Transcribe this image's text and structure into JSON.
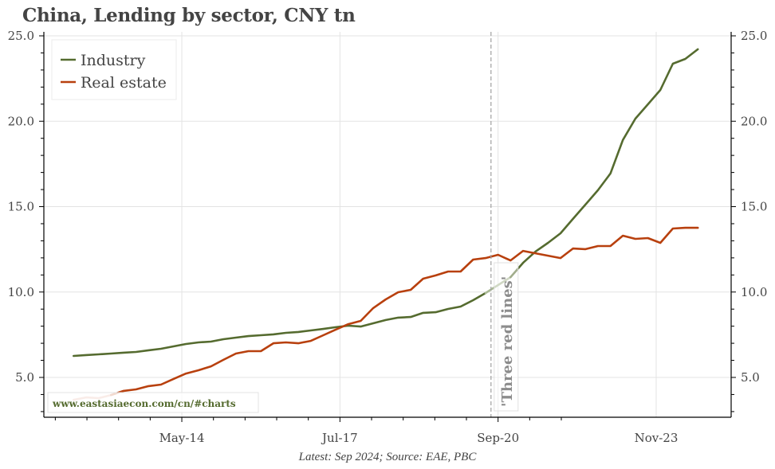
{
  "chart_data": {
    "type": "line",
    "title": "China, Lending by sector, CNY tn",
    "footer": "Latest: Sep 2024; Source: EAE, PBC",
    "watermark": "www.eastasiaecon.com/cn/#charts",
    "annotation": {
      "text": "'Three red lines'",
      "x_month_index": 102.3,
      "style": "dashed vertical line"
    },
    "xlabel": "",
    "ylabel": "",
    "ylim": [
      2.7,
      25.3
    ],
    "y_ticks": [
      5.0,
      10.0,
      15.0,
      20.0,
      25.0
    ],
    "y_tick_labels": [
      "5.0",
      "10.0",
      "15.0",
      "20.0",
      "25.0"
    ],
    "y_axis_both_sides": true,
    "x_ticks": [
      {
        "label": "May-14",
        "month_index": 28
      },
      {
        "label": "Jul-17",
        "month_index": 66
      },
      {
        "label": "Sep-20",
        "month_index": 104
      },
      {
        "label": "Nov-23",
        "month_index": 142
      }
    ],
    "x_month_origin": "Jan-2012",
    "x_range_months": [
      -5.2,
      160
    ],
    "grid": true,
    "legend": {
      "position": "top-left",
      "entries": [
        {
          "name": "Industry",
          "color": "#556b2f"
        },
        {
          "name": "Real estate",
          "color": "#b8400e"
        }
      ]
    },
    "x": [
      "Mar-12",
      "Jun-12",
      "Sep-12",
      "Dec-12",
      "Mar-13",
      "Jun-13",
      "Sep-13",
      "Dec-13",
      "Mar-14",
      "Jun-14",
      "Sep-14",
      "Dec-14",
      "Mar-15",
      "Jun-15",
      "Sep-15",
      "Dec-15",
      "Mar-16",
      "Jun-16",
      "Sep-16",
      "Dec-16",
      "Mar-17",
      "Jun-17",
      "Sep-17",
      "Dec-17",
      "Mar-18",
      "Jun-18",
      "Sep-18",
      "Dec-18",
      "Mar-19",
      "Jun-19",
      "Sep-19",
      "Dec-19",
      "Mar-20",
      "Jun-20",
      "Sep-20",
      "Dec-20",
      "Mar-21",
      "Jun-21",
      "Sep-21",
      "Dec-21",
      "Mar-22",
      "Jun-22",
      "Sep-22",
      "Dec-22",
      "Mar-23",
      "Jun-23",
      "Sep-23",
      "Dec-23",
      "Mar-24",
      "Jun-24",
      "Sep-24"
    ],
    "x_month_index": [
      2,
      5,
      8,
      11,
      14,
      17,
      20,
      23,
      26,
      29,
      32,
      35,
      38,
      41,
      44,
      47,
      50,
      53,
      56,
      59,
      62,
      65,
      68,
      71,
      74,
      77,
      80,
      83,
      86,
      89,
      92,
      95,
      98,
      101,
      104,
      107,
      110,
      113,
      116,
      119,
      122,
      125,
      128,
      131,
      134,
      137,
      140,
      143,
      146,
      149,
      152
    ],
    "series": [
      {
        "name": "Industry",
        "color": "#556b2f",
        "highlight_color": "#a9b994",
        "highlight_range": [
          33,
          35
        ],
        "values": [
          6.26,
          6.31,
          6.35,
          6.4,
          6.45,
          6.49,
          6.59,
          6.68,
          6.82,
          6.96,
          7.05,
          7.1,
          7.24,
          7.33,
          7.42,
          7.47,
          7.52,
          7.61,
          7.66,
          7.75,
          7.84,
          7.94,
          8.03,
          7.98,
          8.17,
          8.36,
          8.5,
          8.54,
          8.78,
          8.82,
          9.01,
          9.15,
          9.52,
          9.94,
          10.41,
          10.87,
          11.71,
          12.37,
          12.88,
          13.44,
          14.28,
          15.12,
          15.96,
          16.94,
          18.9,
          20.15,
          20.99,
          21.83,
          23.37,
          23.65,
          24.21
        ]
      },
      {
        "name": "Real estate",
        "color": "#b8400e",
        "highlight_color": "#e2a08a",
        "highlight_range": [
          0,
          3
        ],
        "values": [
          3.69,
          3.83,
          3.79,
          3.97,
          4.21,
          4.3,
          4.49,
          4.58,
          4.91,
          5.23,
          5.42,
          5.65,
          6.03,
          6.4,
          6.54,
          6.54,
          7.0,
          7.05,
          7.0,
          7.14,
          7.47,
          7.8,
          8.12,
          8.31,
          9.06,
          9.57,
          9.99,
          10.13,
          10.78,
          10.97,
          11.2,
          11.2,
          11.9,
          11.99,
          12.18,
          11.85,
          12.41,
          12.27,
          12.13,
          11.99,
          12.55,
          12.51,
          12.69,
          12.69,
          13.3,
          13.11,
          13.16,
          12.88,
          13.72,
          13.76,
          13.76
        ]
      }
    ]
  }
}
